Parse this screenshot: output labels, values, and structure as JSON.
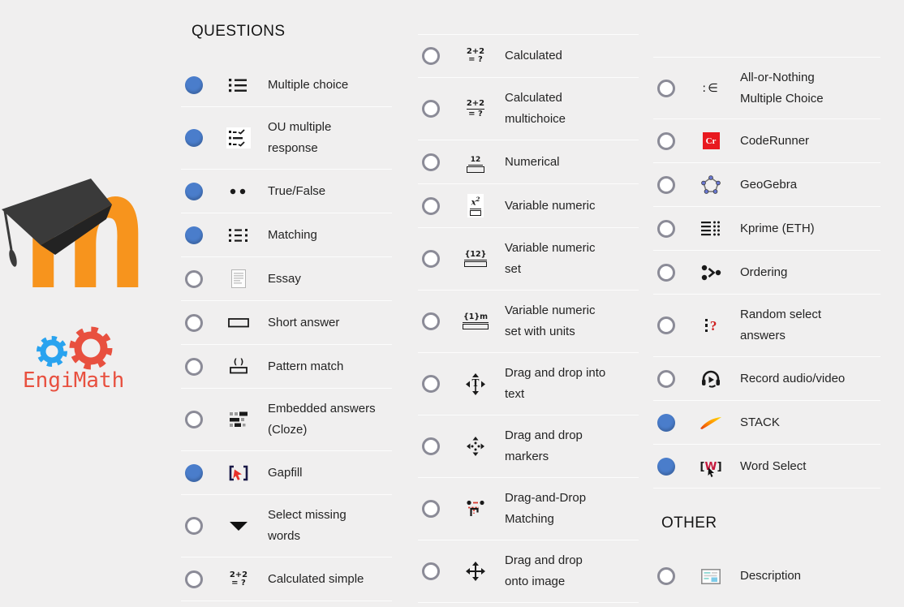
{
  "sections": {
    "questions": "QUESTIONS",
    "other": "OTHER"
  },
  "logos": {
    "engimath_text": "EngiMath"
  },
  "colors": {
    "background": "#f0efef",
    "divider": "#fcfcfc",
    "text": "#242424",
    "radio_selected": "#4a7dcb",
    "radio_unselected_border": "#8b8b97",
    "moodle_orange": "#f7941d",
    "graduation_cap": "#3a3a3a",
    "engimath_red": "#e8503f",
    "engimath_blue": "#29a3ef",
    "coderunner_red": "#e8191f"
  },
  "columns": {
    "col1": [
      {
        "label": "Multiple choice",
        "icon": "multiple-choice-icon",
        "selected": true
      },
      {
        "label": "OU multiple\nresponse",
        "icon": "ou-multiple-response-icon",
        "selected": true
      },
      {
        "label": "True/False",
        "icon": "true-false-icon",
        "selected": true
      },
      {
        "label": "Matching",
        "icon": "matching-icon",
        "selected": true
      },
      {
        "label": "Essay",
        "icon": "essay-icon",
        "selected": false
      },
      {
        "label": "Short answer",
        "icon": "short-answer-icon",
        "selected": false
      },
      {
        "label": "Pattern match",
        "icon": "pattern-match-icon",
        "selected": false
      },
      {
        "label": "Embedded answers\n(Cloze)",
        "icon": "cloze-icon",
        "selected": false
      },
      {
        "label": "Gapfill",
        "icon": "gapfill-icon",
        "selected": true
      },
      {
        "label": "Select missing\nwords",
        "icon": "select-missing-words-icon",
        "selected": false
      },
      {
        "label": "Calculated simple",
        "icon": "calculated-simple-icon",
        "selected": false
      }
    ],
    "col2": [
      {
        "label": "Calculated",
        "icon": "calculated-icon",
        "selected": false
      },
      {
        "label": "Calculated\nmultichoice",
        "icon": "calculated-multichoice-icon",
        "selected": false
      },
      {
        "label": "Numerical",
        "icon": "numerical-icon",
        "selected": false
      },
      {
        "label": "Variable numeric",
        "icon": "variable-numeric-icon",
        "selected": false
      },
      {
        "label": "Variable numeric\nset",
        "icon": "variable-numeric-set-icon",
        "selected": false
      },
      {
        "label": "Variable numeric\nset with units",
        "icon": "variable-numeric-set-units-icon",
        "selected": false
      },
      {
        "label": "Drag and drop into\ntext",
        "icon": "drag-drop-text-icon",
        "selected": false
      },
      {
        "label": "Drag and drop\nmarkers",
        "icon": "drag-drop-markers-icon",
        "selected": false
      },
      {
        "label": "Drag-and-Drop\nMatching",
        "icon": "drag-drop-matching-icon",
        "selected": false
      },
      {
        "label": "Drag and drop\nonto image",
        "icon": "drag-drop-image-icon",
        "selected": false
      }
    ],
    "col3": [
      {
        "label": "All-or-Nothing\nMultiple Choice",
        "icon": "all-or-nothing-icon",
        "selected": false
      },
      {
        "label": "CodeRunner",
        "icon": "coderunner-icon",
        "selected": false
      },
      {
        "label": "GeoGebra",
        "icon": "geogebra-icon",
        "selected": false
      },
      {
        "label": "Kprime (ETH)",
        "icon": "kprime-icon",
        "selected": false
      },
      {
        "label": "Ordering",
        "icon": "ordering-icon",
        "selected": false
      },
      {
        "label": "Random select\nanswers",
        "icon": "random-select-icon",
        "selected": false
      },
      {
        "label": "Record audio/video",
        "icon": "record-av-icon",
        "selected": false
      },
      {
        "label": "STACK",
        "icon": "stack-icon",
        "selected": true
      },
      {
        "label": "Word Select",
        "icon": "word-select-icon",
        "selected": true
      }
    ],
    "other": [
      {
        "label": "Description",
        "icon": "description-icon",
        "selected": false
      }
    ]
  }
}
